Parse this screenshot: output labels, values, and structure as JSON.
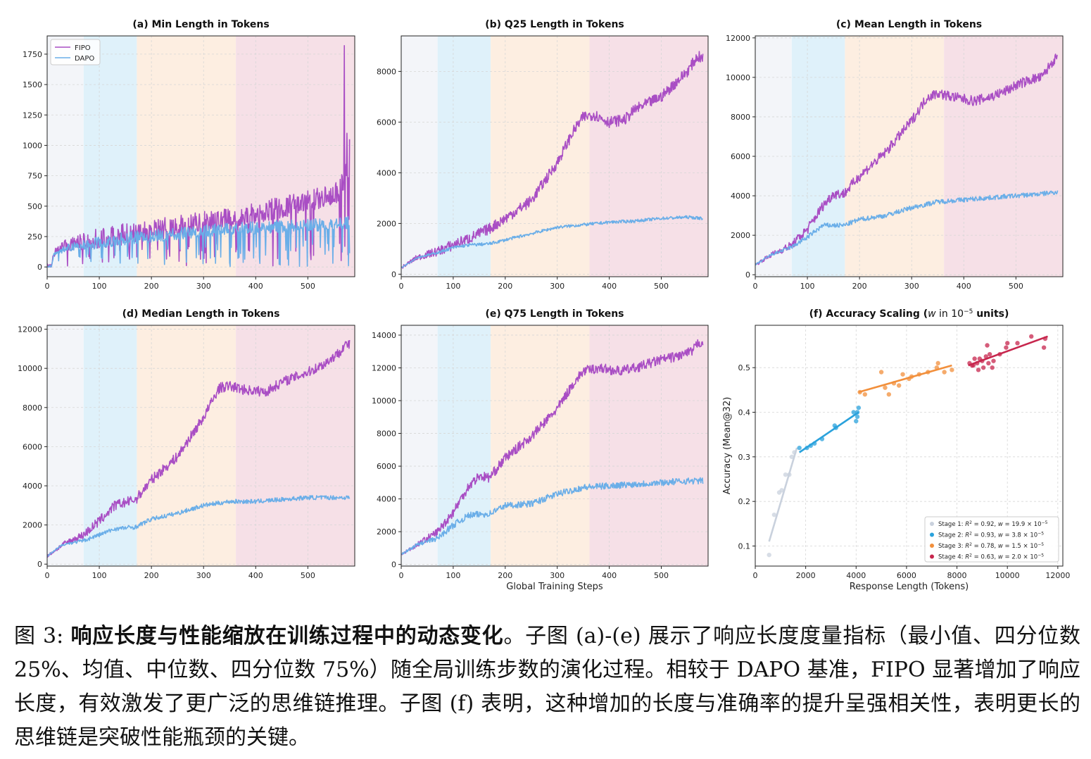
{
  "chart_data": [
    {
      "id": "a",
      "type": "line",
      "title": "(a) Min Length in Tokens",
      "xlim": [
        0,
        590
      ],
      "ylim": [
        -80,
        1900
      ],
      "xticks": [
        0,
        100,
        200,
        300,
        400,
        500
      ],
      "yticks": [
        0,
        250,
        500,
        750,
        1000,
        1250,
        1500,
        1750
      ],
      "xlabel": "",
      "ylabel": "",
      "legend": {
        "position": "top-left",
        "entries": [
          "FIPO",
          "DAPO"
        ]
      },
      "series": [
        {
          "name": "FIPO",
          "color": "#a94ec4",
          "x": [
            0,
            8,
            12,
            20,
            40,
            70,
            100,
            130,
            170,
            200,
            230,
            260,
            300,
            340,
            360,
            400,
            450,
            500,
            540,
            560,
            570,
            575,
            580
          ],
          "y": [
            0,
            0,
            100,
            140,
            170,
            190,
            210,
            240,
            260,
            280,
            300,
            320,
            350,
            370,
            380,
            420,
            470,
            520,
            560,
            600,
            700,
            800,
            750
          ],
          "noise": 110,
          "spikes": [
            [
              570,
              1820
            ],
            [
              575,
              1100
            ],
            [
              580,
              1050
            ]
          ]
        },
        {
          "name": "DAPO",
          "color": "#6aaee8",
          "x": [
            0,
            8,
            12,
            20,
            40,
            70,
            100,
            130,
            170,
            200,
            250,
            300,
            350,
            400,
            450,
            500,
            550,
            580
          ],
          "y": [
            0,
            0,
            90,
            120,
            150,
            170,
            190,
            210,
            230,
            240,
            260,
            280,
            300,
            310,
            320,
            330,
            340,
            350
          ],
          "noise": 65,
          "spikes": []
        }
      ],
      "stages": [
        [
          0,
          70
        ],
        [
          70,
          172
        ],
        [
          172,
          362
        ],
        [
          362,
          590
        ]
      ]
    },
    {
      "id": "b",
      "type": "line",
      "title": "(b) Q25 Length in Tokens",
      "xlim": [
        0,
        590
      ],
      "ylim": [
        -100,
        9400
      ],
      "xticks": [
        0,
        100,
        200,
        300,
        400,
        500
      ],
      "yticks": [
        0,
        2000,
        4000,
        6000,
        8000
      ],
      "xlabel": "",
      "ylabel": "",
      "series": [
        {
          "name": "FIPO",
          "color": "#a94ec4",
          "x": [
            0,
            30,
            70,
            100,
            130,
            170,
            200,
            250,
            300,
            330,
            350,
            370,
            400,
            430,
            450,
            470,
            500,
            530,
            550,
            570,
            580
          ],
          "y": [
            250,
            650,
            900,
            1150,
            1400,
            1800,
            2200,
            2900,
            4400,
            5600,
            6200,
            6300,
            6000,
            6100,
            6500,
            6700,
            7000,
            7600,
            8000,
            8600,
            8500
          ],
          "noise": 220,
          "spikes": []
        },
        {
          "name": "DAPO",
          "color": "#6aaee8",
          "x": [
            0,
            30,
            70,
            100,
            130,
            170,
            200,
            250,
            300,
            350,
            400,
            450,
            500,
            550,
            580
          ],
          "y": [
            250,
            650,
            850,
            1050,
            1150,
            1200,
            1350,
            1600,
            1850,
            1950,
            2050,
            2100,
            2200,
            2250,
            2200
          ],
          "noise": 60,
          "spikes": []
        }
      ],
      "stages": [
        [
          0,
          70
        ],
        [
          70,
          172
        ],
        [
          172,
          362
        ],
        [
          362,
          590
        ]
      ]
    },
    {
      "id": "c",
      "type": "line",
      "title": "(c) Mean Length in Tokens",
      "xlim": [
        0,
        590
      ],
      "ylim": [
        -100,
        12100
      ],
      "xticks": [
        0,
        100,
        200,
        300,
        400,
        500
      ],
      "yticks": [
        0,
        2000,
        4000,
        6000,
        8000,
        10000,
        12000
      ],
      "xlabel": "",
      "ylabel": "",
      "series": [
        {
          "name": "FIPO",
          "color": "#a94ec4",
          "x": [
            0,
            30,
            70,
            100,
            130,
            150,
            170,
            200,
            250,
            300,
            330,
            350,
            380,
            420,
            450,
            480,
            500,
            530,
            550,
            570,
            580
          ],
          "y": [
            500,
            1000,
            1500,
            2300,
            3500,
            4100,
            4100,
            5000,
            6200,
            7800,
            9000,
            9200,
            9000,
            8800,
            9000,
            9300,
            9600,
            9900,
            10000,
            10800,
            11000
          ],
          "noise": 260,
          "spikes": []
        },
        {
          "name": "DAPO",
          "color": "#6aaee8",
          "x": [
            0,
            30,
            70,
            100,
            130,
            170,
            200,
            250,
            300,
            350,
            400,
            450,
            500,
            550,
            580
          ],
          "y": [
            500,
            1000,
            1400,
            1900,
            2500,
            2500,
            2800,
            3000,
            3400,
            3700,
            3800,
            3900,
            4000,
            4100,
            4200
          ],
          "noise": 120,
          "spikes": []
        }
      ],
      "stages": [
        [
          0,
          70
        ],
        [
          70,
          172
        ],
        [
          172,
          362
        ],
        [
          362,
          590
        ]
      ]
    },
    {
      "id": "d",
      "type": "line",
      "title": "(d) Median Length in Tokens",
      "xlim": [
        0,
        590
      ],
      "ylim": [
        -100,
        12200
      ],
      "xticks": [
        0,
        100,
        200,
        300,
        400,
        500
      ],
      "yticks": [
        0,
        2000,
        4000,
        6000,
        8000,
        10000,
        12000
      ],
      "xlabel": "",
      "ylabel": "",
      "series": [
        {
          "name": "FIPO",
          "color": "#a94ec4",
          "x": [
            0,
            30,
            70,
            100,
            130,
            170,
            200,
            250,
            300,
            330,
            350,
            380,
            420,
            450,
            480,
            500,
            530,
            560,
            570,
            580
          ],
          "y": [
            400,
            1000,
            1500,
            2200,
            3000,
            3300,
            4300,
            5500,
            7500,
            9000,
            9100,
            8900,
            8800,
            9300,
            9600,
            9800,
            10200,
            10800,
            11200,
            11200
          ],
          "noise": 260,
          "spikes": []
        },
        {
          "name": "DAPO",
          "color": "#6aaee8",
          "x": [
            0,
            30,
            70,
            100,
            130,
            170,
            200,
            250,
            300,
            350,
            400,
            450,
            500,
            550,
            580
          ],
          "y": [
            400,
            1000,
            1200,
            1500,
            1800,
            1900,
            2300,
            2600,
            3000,
            3200,
            3200,
            3300,
            3400,
            3400,
            3400
          ],
          "noise": 110,
          "spikes": []
        }
      ],
      "stages": [
        [
          0,
          70
        ],
        [
          70,
          172
        ],
        [
          172,
          362
        ],
        [
          362,
          590
        ]
      ]
    },
    {
      "id": "e",
      "type": "line",
      "title": "(e) Q75 Length in Tokens",
      "xlim": [
        0,
        590
      ],
      "ylim": [
        -100,
        14600
      ],
      "xticks": [
        0,
        100,
        200,
        300,
        400,
        500
      ],
      "yticks": [
        0,
        2000,
        4000,
        6000,
        8000,
        10000,
        12000,
        14000
      ],
      "xlabel": "Global Training Steps",
      "ylabel": "",
      "series": [
        {
          "name": "FIPO",
          "color": "#a94ec4",
          "x": [
            0,
            30,
            70,
            100,
            130,
            150,
            170,
            200,
            250,
            300,
            330,
            350,
            380,
            420,
            450,
            480,
            500,
            530,
            560,
            570,
            580
          ],
          "y": [
            600,
            1200,
            2000,
            3200,
            4800,
            5400,
            5300,
            6500,
            7800,
            9500,
            11000,
            11800,
            12000,
            11800,
            12000,
            12300,
            12500,
            12700,
            13000,
            13500,
            13600
          ],
          "noise": 300,
          "spikes": []
        },
        {
          "name": "DAPO",
          "color": "#6aaee8",
          "x": [
            0,
            30,
            70,
            100,
            130,
            170,
            200,
            250,
            300,
            350,
            400,
            450,
            500,
            550,
            580
          ],
          "y": [
            600,
            1200,
            1600,
            2400,
            3000,
            3100,
            3600,
            3700,
            4300,
            4700,
            4800,
            4900,
            5000,
            5100,
            5100
          ],
          "noise": 200,
          "spikes": []
        }
      ],
      "stages": [
        [
          0,
          70
        ],
        [
          70,
          172
        ],
        [
          172,
          362
        ],
        [
          362,
          590
        ]
      ]
    },
    {
      "id": "f",
      "type": "scatter",
      "title": "(f) Accuracy Scaling (",
      "title_w": "w",
      "title_mid": " in 10",
      "title_exp": "−5",
      "title_end": " units)",
      "xlim": [
        0,
        12200
      ],
      "ylim": [
        0.055,
        0.595
      ],
      "xticks": [
        0,
        2000,
        4000,
        6000,
        8000,
        10000,
        12000
      ],
      "yticks": [
        0.1,
        0.2,
        0.3,
        0.4,
        0.5
      ],
      "xlabel": "Response Length (Tokens)",
      "ylabel": "Accuracy (Mean@32)",
      "series": [
        {
          "name": "Stage 1",
          "color": "#c9d1dd",
          "r2": "0.92",
          "w": "19.9",
          "points": [
            [
              550,
              0.08
            ],
            [
              750,
              0.17
            ],
            [
              950,
              0.22
            ],
            [
              1050,
              0.225
            ],
            [
              1200,
              0.26
            ],
            [
              1350,
              0.26
            ],
            [
              1450,
              0.3
            ],
            [
              1550,
              0.31
            ]
          ],
          "fit": [
            [
              550,
              0.11
            ],
            [
              1650,
              0.32
            ]
          ]
        },
        {
          "name": "Stage 2",
          "color": "#2aa2dc",
          "r2": "0.93",
          "w": "3.8",
          "points": [
            [
              1750,
              0.32
            ],
            [
              2050,
              0.32
            ],
            [
              2200,
              0.325
            ],
            [
              2350,
              0.33
            ],
            [
              2650,
              0.34
            ],
            [
              3150,
              0.37
            ],
            [
              3200,
              0.365
            ],
            [
              3900,
              0.4
            ],
            [
              4000,
              0.38
            ],
            [
              4050,
              0.39
            ],
            [
              4100,
              0.41
            ],
            [
              4050,
              0.4
            ]
          ],
          "fit": [
            [
              1750,
              0.31
            ],
            [
              4100,
              0.4
            ]
          ]
        },
        {
          "name": "Stage 3",
          "color": "#f28f3b",
          "r2": "0.78",
          "w": "1.5",
          "points": [
            [
              4150,
              0.445
            ],
            [
              4350,
              0.44
            ],
            [
              5000,
              0.49
            ],
            [
              5150,
              0.455
            ],
            [
              5300,
              0.44
            ],
            [
              5500,
              0.465
            ],
            [
              5700,
              0.46
            ],
            [
              5850,
              0.485
            ],
            [
              6100,
              0.475
            ],
            [
              6200,
              0.48
            ],
            [
              6500,
              0.485
            ],
            [
              6850,
              0.49
            ],
            [
              7200,
              0.5
            ],
            [
              7250,
              0.51
            ],
            [
              7500,
              0.49
            ],
            [
              7800,
              0.495
            ]
          ],
          "fit": [
            [
              4100,
              0.445
            ],
            [
              7800,
              0.505
            ]
          ]
        },
        {
          "name": "Stage 4",
          "color": "#c7264d",
          "r2": "0.63",
          "w": "2.0",
          "points": [
            [
              8500,
              0.51
            ],
            [
              8600,
              0.505
            ],
            [
              8700,
              0.52
            ],
            [
              8800,
              0.51
            ],
            [
              8850,
              0.495
            ],
            [
              8900,
              0.52
            ],
            [
              9000,
              0.515
            ],
            [
              9050,
              0.5
            ],
            [
              9150,
              0.525
            ],
            [
              9250,
              0.51
            ],
            [
              9300,
              0.53
            ],
            [
              9400,
              0.5
            ],
            [
              9450,
              0.515
            ],
            [
              9200,
              0.55
            ],
            [
              9700,
              0.53
            ],
            [
              9950,
              0.545
            ],
            [
              10000,
              0.555
            ],
            [
              10400,
              0.555
            ],
            [
              10950,
              0.57
            ],
            [
              11450,
              0.545
            ],
            [
              11500,
              0.565
            ],
            [
              8650,
              0.505
            ]
          ],
          "fit": [
            [
              8450,
              0.505
            ],
            [
              11600,
              0.57
            ]
          ]
        }
      ],
      "legend": {
        "position": "lower-right"
      }
    }
  ],
  "caption": {
    "prefix": "图 3: ",
    "bold": "响应长度与性能缩放在训练过程中的动态变化",
    "text": "。子图 (a)-(e) 展示了响应长度度量指标（最小值、四分位数 25%、均值、中位数、四分位数 75%）随全局训练步数的演化过程。相较于 DAPO 基准，FIPO 显著增加了响应长度，有效激发了更广泛的思维链推理。子图 (f) 表明，这种增加的长度与准确率的提升呈强相关性，表明更长的思维链是突破性能瓶颈的关键。"
  },
  "colors": {
    "stage_bands": [
      "#f3f5f9",
      "#dff1fa",
      "#fdeee1",
      "#f6e0e7"
    ],
    "grid": "#d6d6d6"
  }
}
